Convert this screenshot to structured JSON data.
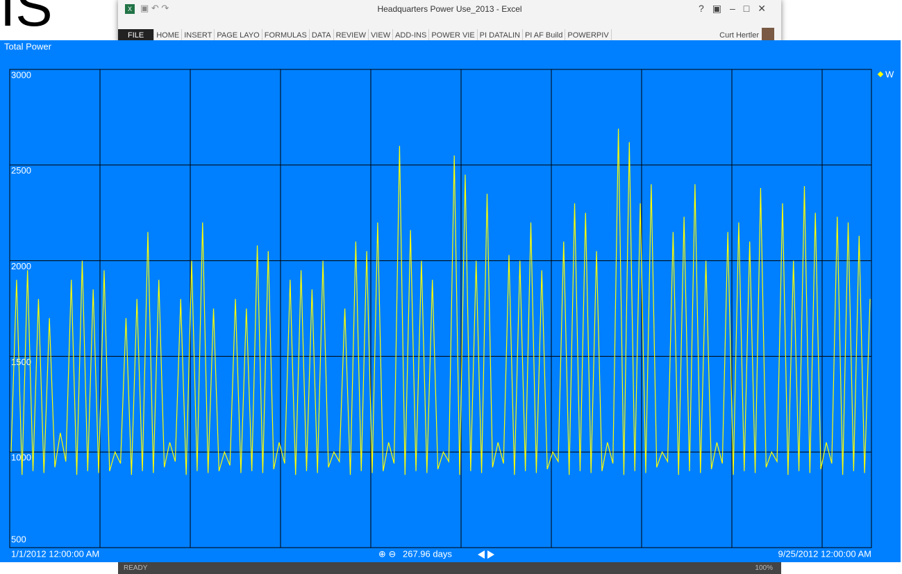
{
  "background_text": "IS",
  "window": {
    "title": "Headquarters Power Use_2013 - Excel",
    "tabs": [
      "FILE",
      "HOME",
      "INSERT",
      "PAGE LAYO",
      "FORMULAS",
      "DATA",
      "REVIEW",
      "VIEW",
      "ADD-INS",
      "POWER VIE",
      "PI DATALIN",
      "PI AF Build",
      "POWERPIV"
    ],
    "user": "Curt Hertler",
    "status": "READY",
    "zoom": "100%"
  },
  "chart_data": {
    "type": "line",
    "title": "Total Power",
    "series": [
      {
        "name": "W",
        "color": "#ffff00",
        "values": [
          1000,
          1900,
          880,
          1950,
          900,
          1800,
          890,
          1700,
          920,
          1100,
          950,
          1900,
          880,
          2000,
          900,
          1850,
          890,
          1950,
          900,
          1000,
          940,
          1700,
          880,
          1800,
          900,
          2150,
          890,
          1900,
          920,
          1050,
          950,
          1800,
          880,
          2000,
          900,
          2200,
          890,
          1750,
          900,
          1000,
          930,
          1800,
          890,
          1750,
          900,
          2080,
          890,
          2050,
          910,
          1050,
          940,
          1900,
          880,
          1950,
          900,
          1850,
          890,
          2000,
          920,
          1000,
          950,
          1750,
          880,
          2100,
          900,
          2050,
          890,
          2200,
          900,
          1050,
          940,
          2600,
          880,
          2160,
          900,
          2000,
          890,
          1900,
          910,
          1000,
          950,
          2550,
          880,
          2450,
          900,
          2000,
          890,
          2350,
          920,
          1050,
          940,
          2030,
          880,
          2000,
          900,
          2200,
          890,
          1950,
          910,
          1000,
          950,
          2100,
          880,
          2300,
          900,
          2250,
          890,
          2050,
          900,
          1050,
          940,
          2690,
          880,
          2620,
          900,
          2300,
          890,
          2400,
          920,
          1000,
          950,
          2150,
          880,
          2230,
          900,
          2400,
          890,
          2000,
          910,
          1050,
          940,
          2150,
          880,
          2200,
          900,
          2100,
          890,
          2380,
          920,
          1000,
          950,
          2300,
          880,
          2000,
          900,
          2390,
          890,
          2250,
          910,
          1050,
          940,
          2230,
          880,
          2200,
          900,
          2130,
          890,
          1800
        ]
      }
    ],
    "ylim": [
      500,
      3000
    ],
    "yticks": [
      500,
      1000,
      1500,
      2000,
      2500,
      3000
    ],
    "grid": true,
    "x_start_label": "1/1/2012 12:00:00 AM",
    "x_end_label": "9/25/2012 12:00:00 AM",
    "span_label": "267.96 days"
  }
}
